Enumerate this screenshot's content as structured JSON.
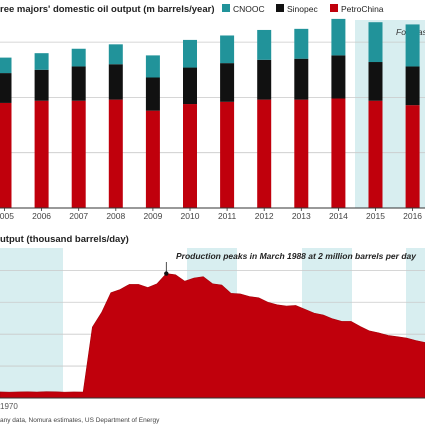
{
  "chart_data": [
    {
      "type": "bar",
      "title": "ree majors' domestic oil output (m barrels/year)",
      "categories": [
        "2005",
        "2006",
        "2007",
        "2008",
        "2009",
        "2010",
        "2011",
        "2012",
        "2013",
        "2014",
        "2015",
        "2016"
      ],
      "series": [
        {
          "name": "PetroChina",
          "color": "#c0000c",
          "values": [
            95,
            97,
            97,
            98,
            88,
            94,
            96,
            98,
            98,
            99,
            97,
            93
          ]
        },
        {
          "name": "Sinopec",
          "color": "#111111",
          "values": [
            27,
            28,
            31,
            32,
            30,
            33,
            35,
            36,
            37,
            39,
            35,
            35
          ]
        },
        {
          "name": "CNOOC",
          "color": "#21939a",
          "values": [
            14,
            15,
            16,
            18,
            20,
            25,
            25,
            27,
            27,
            33,
            36,
            38
          ]
        }
      ],
      "forecast_label": "Forecas",
      "ylim": [
        0,
        170
      ]
    },
    {
      "type": "area",
      "title": "utput (thousand barrels/day)",
      "x": [
        1970,
        1971,
        1972,
        1973,
        1974,
        1975,
        1976,
        1977,
        1978,
        1979,
        1980,
        1981,
        1982,
        1983,
        1984,
        1985,
        1986,
        1987,
        1988,
        1989,
        1990,
        1991,
        1992,
        1993,
        1994,
        1995,
        1996,
        1997,
        1998,
        1999,
        2000,
        2001,
        2002,
        2003,
        2004,
        2005,
        2006,
        2007,
        2008,
        2009,
        2010,
        2011,
        2012,
        2013,
        2014,
        2015,
        2016
      ],
      "values": [
        95,
        92,
        95,
        98,
        93,
        99,
        97,
        92,
        95,
        93,
        1110,
        1340,
        1650,
        1700,
        1780,
        1780,
        1730,
        1790,
        1950,
        1930,
        1830,
        1880,
        1900,
        1790,
        1770,
        1640,
        1630,
        1590,
        1570,
        1500,
        1460,
        1440,
        1450,
        1390,
        1330,
        1300,
        1240,
        1200,
        1200,
        1120,
        1050,
        1020,
        980,
        960,
        940,
        900,
        870
      ],
      "x_tick": "1970",
      "annotation": "Production peaks in March 1988 at 2 million barrels per day",
      "ylim": [
        0,
        2350
      ],
      "color": "#c0000c"
    }
  ],
  "source": "any data, Nomura estimates, US Department of Energy"
}
